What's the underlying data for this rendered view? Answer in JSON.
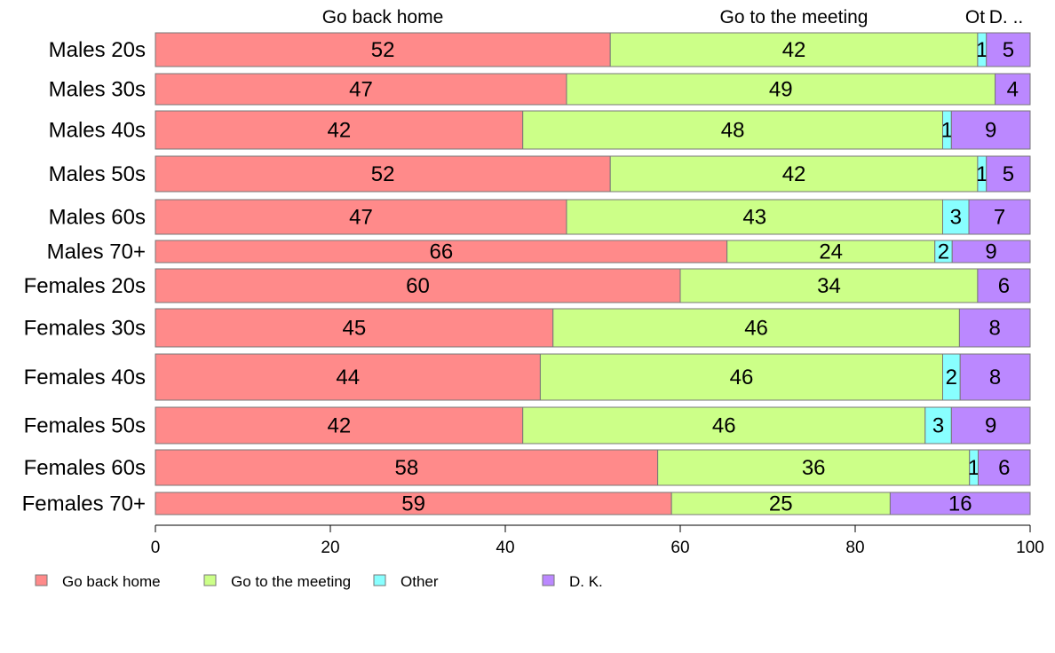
{
  "chart_data": {
    "type": "bar",
    "orientation": "horizontal",
    "stacked": true,
    "categories": [
      "Males 20s",
      "Males 30s",
      "Males 40s",
      "Males 50s",
      "Males 60s",
      "Males 70+",
      "Females 20s",
      "Females 30s",
      "Females 40s",
      "Females 50s",
      "Females 60s",
      "Females 70+"
    ],
    "series": [
      {
        "name": "Go back home",
        "color": "#FF8A8A",
        "values": [
          52,
          47,
          42,
          52,
          47,
          66,
          60,
          45,
          44,
          42,
          58,
          59
        ],
        "labels": [
          "52",
          "47",
          "42",
          "52",
          "47",
          "66",
          "60",
          "45",
          "44",
          "42",
          "58",
          "59"
        ]
      },
      {
        "name": "Go to the meeting",
        "color": "#CCFF88",
        "values": [
          42,
          49,
          48,
          42,
          43,
          24,
          34,
          46,
          46,
          46,
          36,
          25
        ],
        "labels": [
          "42",
          "49",
          "48",
          "42",
          "43",
          "24",
          "34",
          "46",
          "46",
          "46",
          "36",
          "25"
        ]
      },
      {
        "name": "Other",
        "color": "#88FFFF",
        "values": [
          1,
          0,
          1,
          1,
          3,
          2,
          0,
          0,
          2,
          3,
          1,
          0
        ],
        "labels": [
          "1",
          "",
          "1",
          "1",
          "3",
          "2",
          "",
          "",
          "2",
          "3",
          "1",
          ""
        ]
      },
      {
        "name": "D. K.",
        "color": "#BB88FF",
        "values": [
          5,
          4,
          9,
          5,
          7,
          9,
          6,
          8,
          8,
          9,
          6,
          16
        ],
        "labels": [
          "5",
          "4",
          "9",
          "5",
          "7",
          "9",
          "6",
          "8",
          "8",
          "9",
          "6",
          "16"
        ]
      }
    ],
    "top_labels": [
      "Go back home",
      "Go to the meeting",
      "Ot",
      "D. .."
    ],
    "xlim": [
      0,
      100
    ],
    "xticks": [
      "0",
      "20",
      "40",
      "60",
      "80",
      "100"
    ],
    "title": "",
    "xlabel": "",
    "ylabel": "",
    "grid": false,
    "legend_position": "bottom"
  }
}
